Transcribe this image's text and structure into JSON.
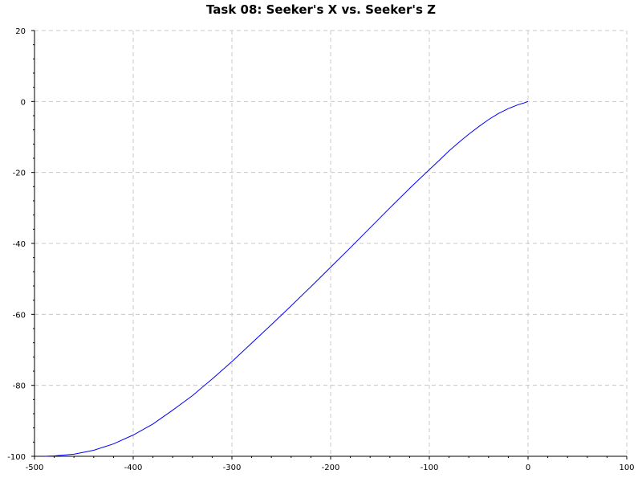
{
  "chart_data": {
    "type": "line",
    "title": "Task 08: Seeker's X vs. Seeker's Z",
    "xlabel": "",
    "ylabel": "",
    "xlim": [
      -500,
      100
    ],
    "ylim": [
      -100,
      20
    ],
    "xticks": [
      -500,
      -400,
      -300,
      -200,
      -100,
      0,
      100
    ],
    "yticks": [
      -100,
      -80,
      -60,
      -40,
      -20,
      0,
      20
    ],
    "grid": true,
    "colors": {
      "line": "#0000ff",
      "grid": "#c8c8c8",
      "axis": "#000000",
      "background": "#ffffff"
    },
    "series": [
      {
        "x": [
          0,
          -5,
          -10,
          -20,
          -30,
          -40,
          -50,
          -60,
          -70,
          -80,
          -90,
          -100,
          -120,
          -140,
          -160,
          -180,
          -200,
          -220,
          -240,
          -260,
          -280,
          -300,
          -320,
          -340,
          -360,
          -380,
          -400,
          -420,
          -440,
          -460,
          -480,
          -490
        ],
        "y": [
          0,
          -0.5,
          -0.9,
          -2.0,
          -3.4,
          -5.1,
          -7.1,
          -9.2,
          -11.5,
          -13.9,
          -16.6,
          -19.2,
          -24.5,
          -30.0,
          -35.6,
          -41.2,
          -46.7,
          -52.2,
          -57.6,
          -62.9,
          -68.1,
          -73.3,
          -78.2,
          -82.9,
          -87.0,
          -90.9,
          -94.0,
          -96.5,
          -98.3,
          -99.4,
          -99.9,
          -100.0
        ]
      }
    ]
  }
}
